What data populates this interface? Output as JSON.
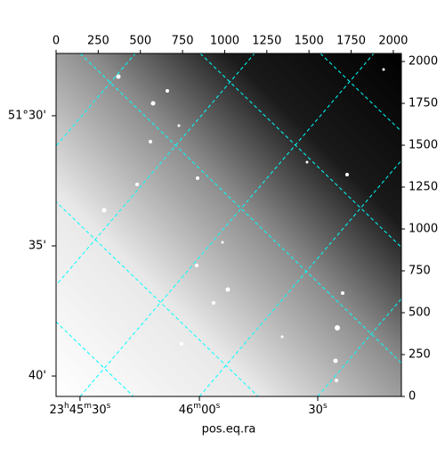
{
  "chart_data": {
    "type": "image",
    "xlabel": "pos.eq.ra",
    "xlim": [
      0,
      2048
    ],
    "ylim": [
      0,
      2048
    ],
    "xticks": [
      0,
      250,
      500,
      750,
      1000,
      1250,
      1500,
      1750,
      2000
    ],
    "yticks": [
      0,
      250,
      500,
      750,
      1000,
      1250,
      1500,
      1750,
      2000
    ],
    "ra_ticks": [
      {
        "value": 142,
        "label": "23h45m30s"
      },
      {
        "value": 850,
        "label": "46m00s"
      },
      {
        "value": 1552,
        "label": "30s"
      }
    ],
    "dec_ticks": [
      {
        "value": 1676,
        "label": "51°30'"
      },
      {
        "value": 899,
        "label": "35'"
      },
      {
        "value": 122,
        "label": "40'"
      }
    ],
    "grid_color": "#00ffff"
  }
}
